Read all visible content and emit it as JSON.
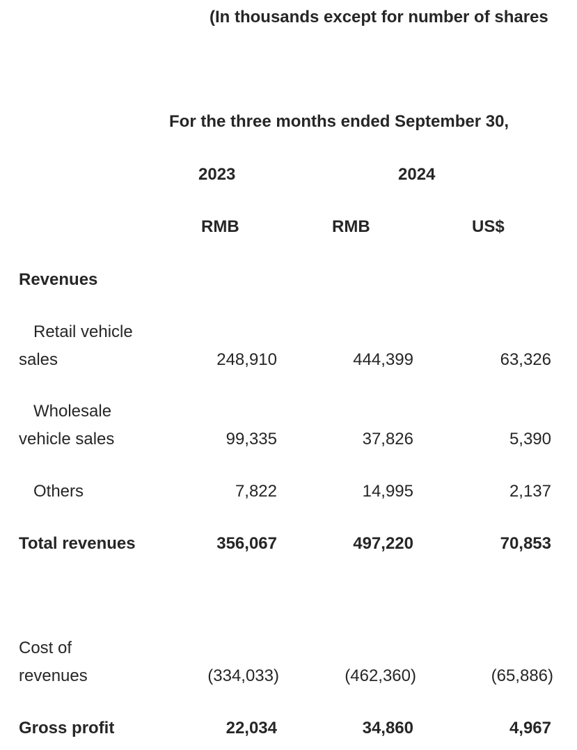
{
  "header": {
    "unit_note": "(In thousands except for number of shares",
    "period": "For the three months ended September 30,",
    "year_2023": "2023",
    "year_2024": "2024",
    "currency_2023_rmb": "RMB",
    "currency_2024_rmb": "RMB",
    "currency_2024_usd": "US$"
  },
  "rows": {
    "revenues_heading": "Revenues",
    "retail": {
      "label_line1": "Retail vehicle",
      "label_line2": "sales",
      "rmb_2023": "248,910",
      "rmb_2024": "444,399",
      "usd_2024": "63,326"
    },
    "wholesale": {
      "label_line1": "Wholesale",
      "label_line2": "vehicle sales",
      "rmb_2023": "99,335",
      "rmb_2024": "37,826",
      "usd_2024": "5,390"
    },
    "others": {
      "label": "Others",
      "rmb_2023": "7,822",
      "rmb_2024": "14,995",
      "usd_2024": "2,137"
    },
    "total_revenues": {
      "label": "Total revenues",
      "rmb_2023": "356,067",
      "rmb_2024": "497,220",
      "usd_2024": "70,853"
    },
    "cost_of_revenues": {
      "label_line1": "Cost of",
      "label_line2": "revenues",
      "rmb_2023": "(334,033)",
      "rmb_2024": "(462,360)",
      "usd_2024": "(65,886)"
    },
    "gross_profit": {
      "label": "Gross profit",
      "rmb_2023": "22,034",
      "rmb_2024": "34,860",
      "usd_2024": "4,967"
    }
  }
}
